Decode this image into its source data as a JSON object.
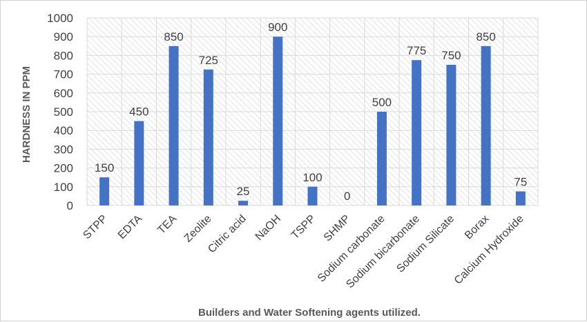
{
  "chart_data": {
    "type": "bar",
    "title": "",
    "xlabel": "Builders and Water Softening agents utilized.",
    "ylabel": "HARDNESS IN PPM",
    "categories": [
      "STPP",
      "EDTA",
      "TEA",
      "Zeolite",
      "Citric acid",
      "NaOH",
      "TSPP",
      "SHMP",
      "Sodium carbonate",
      "Sodium bicarbonate",
      "Sodium Silicate",
      "Borax",
      "Calcium Hydroxide"
    ],
    "values": [
      150,
      450,
      850,
      725,
      25,
      900,
      100,
      0,
      500,
      775,
      750,
      850,
      75
    ],
    "ylim": [
      0,
      1000
    ],
    "yticks": [
      0,
      100,
      200,
      300,
      400,
      500,
      600,
      700,
      800,
      900,
      1000
    ],
    "grid": true,
    "legend": "none",
    "data_labels": true,
    "bar_color": "#4472C4",
    "grid_color": "#d9d9d9",
    "plot_background": "hatched-light-gray"
  }
}
